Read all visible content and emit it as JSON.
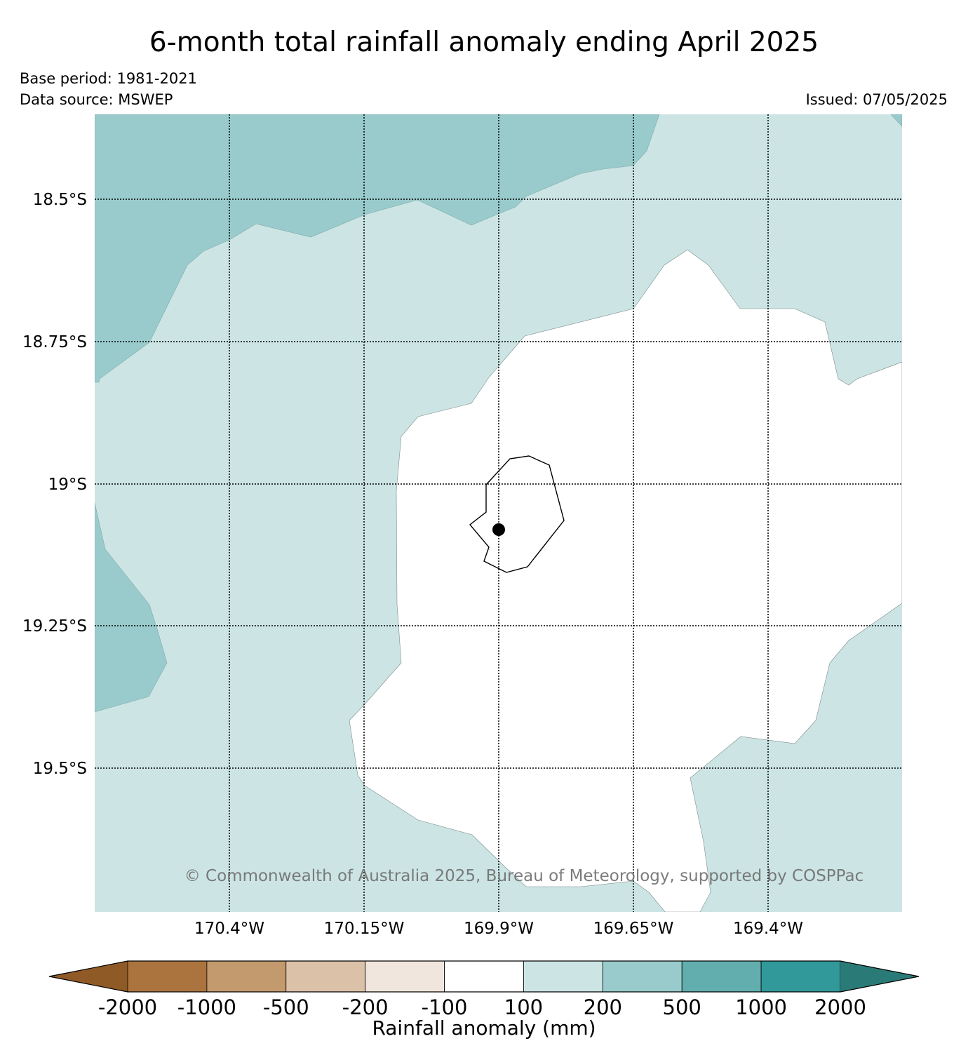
{
  "header": {
    "title": "6-month total rainfall anomaly ending April 2025",
    "base_period": "Base period: 1981-2021",
    "data_source": "Data source: MSWEP",
    "issued": "Issued: 07/05/2025"
  },
  "map": {
    "latitude_labels": [
      "18.5°S",
      "18.75°S",
      "19°S",
      "19.25°S",
      "19.5°S"
    ],
    "longitude_labels": [
      "170.4°W",
      "170.15°W",
      "169.9°W",
      "169.65°W",
      "169.4°W"
    ],
    "copyright": "© Commonwealth of Australia 2025, Bureau of Meteorology, supported by COSPPac",
    "gridlines": true,
    "marker": "location-dot"
  },
  "colorbar": {
    "title": "Rainfall anomaly (mm)",
    "tick_labels": [
      "-2000",
      "-1000",
      "-500",
      "-200",
      "-100",
      "100",
      "200",
      "500",
      "1000",
      "2000"
    ],
    "colors": [
      "#8f5a26",
      "#ab743f",
      "#c39a6d",
      "#dbc1a7",
      "#f1e6dd",
      "#ffffff",
      "#cce5e4",
      "#9acbcc",
      "#62aeae",
      "#31999a",
      "#2a7a77"
    ]
  }
}
